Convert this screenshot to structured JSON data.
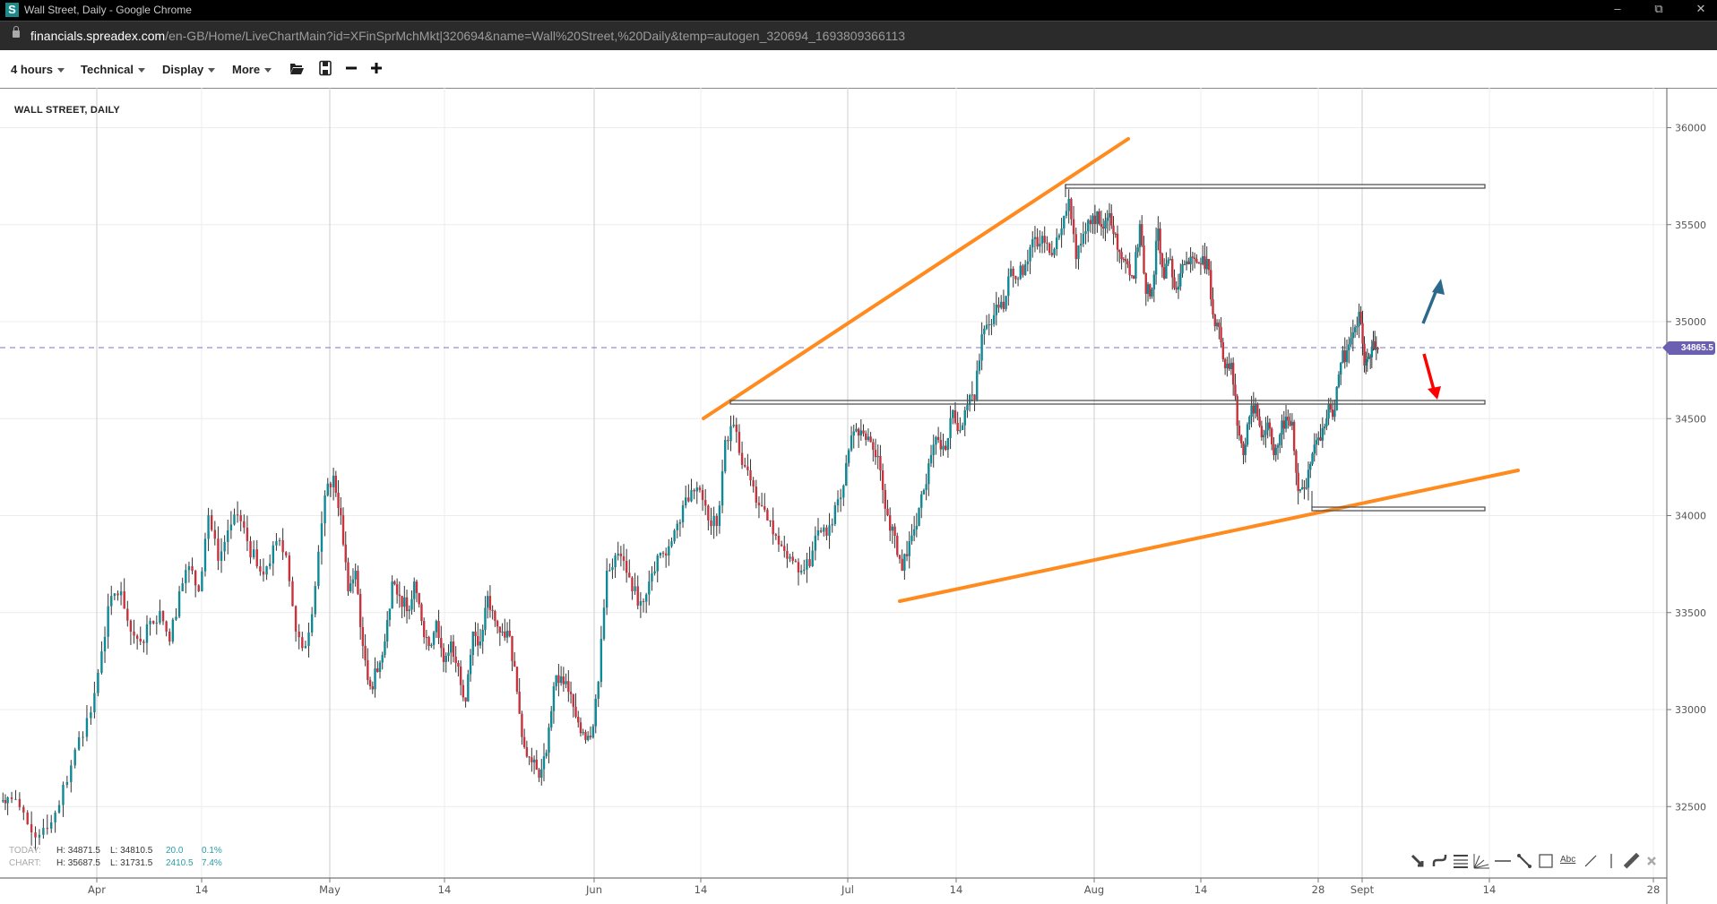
{
  "window": {
    "title": "Wall Street, Daily - Google Chrome",
    "app_icon_letter": "S",
    "url_domain": "financials.spreadex.com",
    "url_path": "/en-GB/Home/LiveChartMain?id=XFinSprMchMkt|320694&name=Wall%20Street,%20Daily&temp=autogen_320694_1693809366113"
  },
  "toolbar": {
    "interval": "4 hours",
    "technical": "Technical",
    "display": "Display",
    "more": "More",
    "icons": [
      "folder-open-icon",
      "save-icon",
      "zoom-out-icon",
      "zoom-in-icon"
    ]
  },
  "chart": {
    "title": "WALL STREET, DAILY",
    "current_price": "34865.5",
    "info": {
      "today_label": "TODAY:",
      "today_high": "H: 34871.5",
      "today_low": "L: 34810.5",
      "today_change": "20.0",
      "today_pct": "0.1%",
      "chart_label": "CHART:",
      "chart_high": "H: 35687.5",
      "chart_low": "L: 31731.5",
      "chart_change": "2410.5",
      "chart_pct": "7.4%"
    },
    "drawing_tools": [
      "arrow-tool-icon",
      "curve-tool-icon",
      "fibonacci-tool-icon",
      "fan-tool-icon",
      "horizontal-line-tool-icon",
      "segment-tool-icon",
      "rectangle-tool-icon",
      "text-tool-icon",
      "line-tool-icon",
      "vertical-line-tool-icon",
      "ruler-tool-icon",
      "clear-drawings-icon"
    ],
    "text_tool_label": "Abc"
  },
  "colors": {
    "up": "#0e8a96",
    "down": "#c8323c",
    "wick": "#333333",
    "trendline": "#ff8a1e",
    "price_line": "#7b72c8",
    "up_arrow": "#2b6a8a",
    "down_arrow": "#ff0000"
  },
  "chart_data": {
    "type": "candlestick",
    "title": "WALL STREET, DAILY",
    "y_ticks": [
      32500,
      33000,
      33500,
      34000,
      34500,
      35000,
      35500,
      36000
    ],
    "ylim": [
      32250,
      36150
    ],
    "x_ticks": [
      "Apr",
      "14",
      "May",
      "14",
      "Jun",
      "14",
      "Jul",
      "14",
      "Aug",
      "14",
      "28",
      "Sept",
      "14",
      "28"
    ],
    "grid": true,
    "last_price": 34865.5,
    "horizontal_levels": [
      35697,
      34584,
      34035
    ],
    "closes_by_month": {
      "Mar": [
        32547,
        32497,
        32367,
        32390,
        32469,
        32626,
        32857,
        32986
      ],
      "Apr": [
        33300,
        33586,
        33610,
        33402,
        33351,
        33457,
        33508,
        33351,
        33610,
        33739,
        33610,
        34002,
        33767,
        33924,
        34002,
        33868,
        33739,
        33739,
        33868,
        33794,
        33402,
        33328,
        33637,
        34104
      ],
      "May": [
        34206,
        34002,
        33610,
        33716,
        33328,
        33120,
        33194,
        33351,
        33660,
        33586,
        33508,
        33660,
        33457,
        33328,
        33457,
        33245,
        33351,
        33222,
        33042,
        33402,
        33351,
        33586,
        33457,
        33402,
        33379,
        33092,
        32806,
        32728,
        32649,
        32778,
        33120,
        33171,
        33092,
        32963,
        32884,
        32857
      ],
      "Jun": [
        33143,
        33716,
        33794,
        33767,
        33610,
        33559,
        33660,
        33794,
        33794,
        33924,
        34053,
        34132,
        34132,
        33975,
        33947,
        34390,
        34469,
        34261,
        34182,
        34053,
        33975,
        33896,
        33818,
        33767,
        33716,
        33739,
        33924,
        33896,
        34053,
        34155
      ],
      "Jul": [
        34413,
        34413,
        34390,
        34339,
        34233,
        34002,
        33896,
        33716,
        33868,
        33947,
        34132,
        34312,
        34390,
        34339,
        34543,
        34441,
        34570,
        34598,
        34935,
        34986,
        35088,
        35065,
        35273,
        35222,
        35296,
        35425,
        35402,
        35402,
        35374,
        35480,
        35633,
        35323,
        35453,
        35503
      ],
      "Aug": [
        35568,
        35480,
        35559,
        35453,
        35323,
        35296,
        35222,
        35503,
        35143,
        35166,
        35480,
        35222,
        35323,
        35166,
        35296,
        35296,
        35323,
        35296,
        35323,
        35037,
        34972,
        34760,
        34788,
        34464,
        34312,
        34510,
        34575,
        34404,
        34480,
        34312,
        34418,
        34510,
        34483,
        34127,
        34141,
        34266,
        34390,
        34450,
        34575,
        34543,
        34788,
        34852,
        34945,
        35051
      ],
      "Sept": [
        34774,
        34820,
        34898,
        34857
      ]
    }
  }
}
